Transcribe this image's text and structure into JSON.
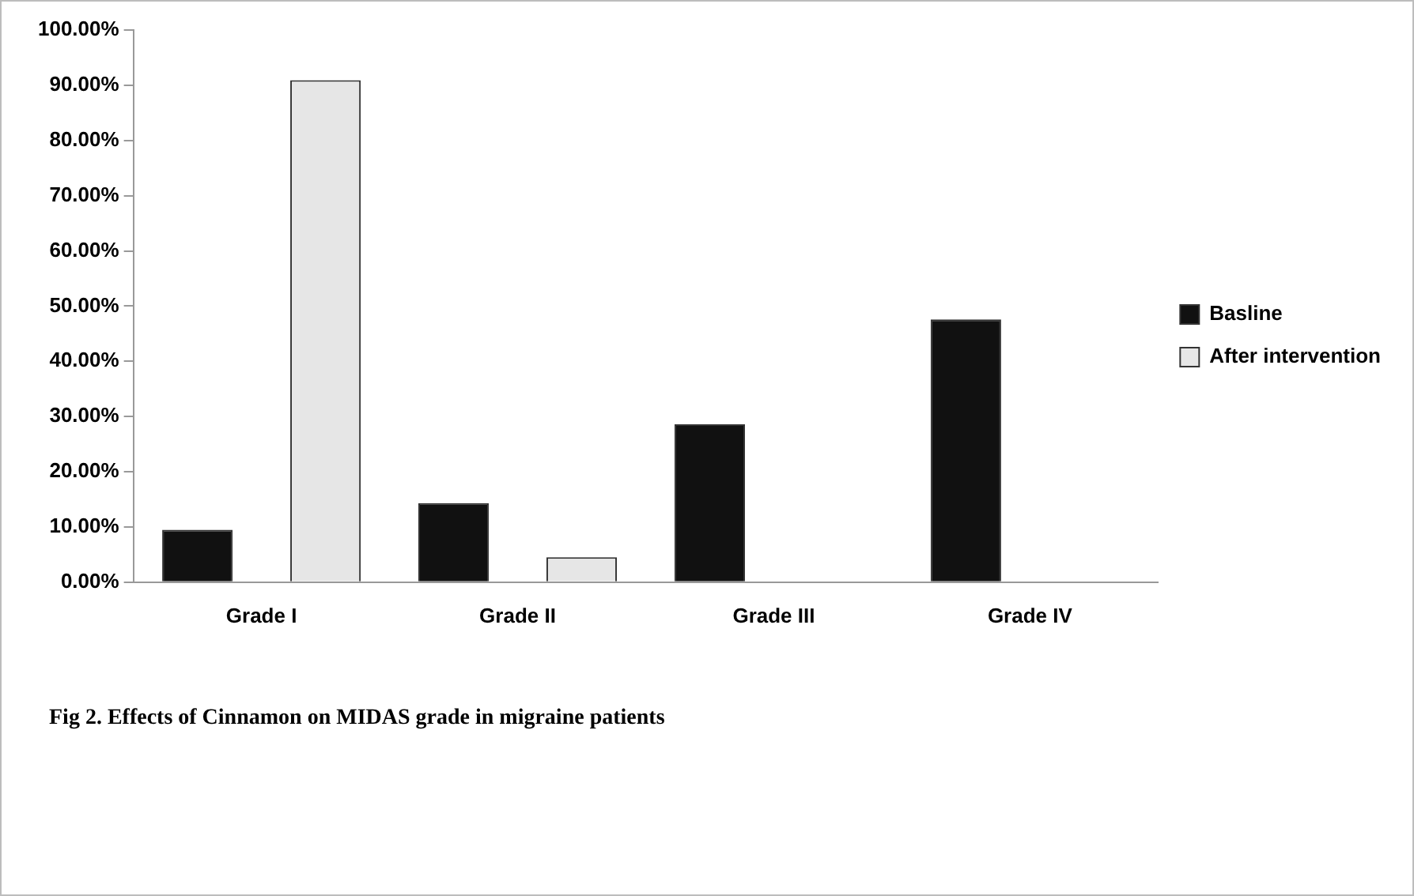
{
  "chart_data": {
    "type": "bar",
    "categories": [
      "Grade I",
      "Grade II",
      "Grade III",
      "Grade IV"
    ],
    "series": [
      {
        "name": "Basline",
        "color": "#111111",
        "values": [
          9.5,
          14.3,
          28.6,
          47.6
        ]
      },
      {
        "name": "After intervention",
        "color": "#e6e6e6",
        "values": [
          90.9,
          4.5,
          0,
          0
        ]
      }
    ],
    "ylim": [
      0,
      100
    ],
    "yticks": [
      {
        "value": 0,
        "label": "0.00%"
      },
      {
        "value": 10,
        "label": "10.00%"
      },
      {
        "value": 20,
        "label": "20.00%"
      },
      {
        "value": 30,
        "label": "30.00%"
      },
      {
        "value": 40,
        "label": "40.00%"
      },
      {
        "value": 50,
        "label": "50.00%"
      },
      {
        "value": 60,
        "label": "60.00%"
      },
      {
        "value": 70,
        "label": "70.00%"
      },
      {
        "value": 80,
        "label": "80.00%"
      },
      {
        "value": 90,
        "label": "90.00%"
      },
      {
        "value": 100,
        "label": "100.00%"
      }
    ],
    "grid": false,
    "legend": "right",
    "annotations": [
      "Fig 2. Effects of Cinnamon on MIDAS grade in migraine patients"
    ]
  }
}
